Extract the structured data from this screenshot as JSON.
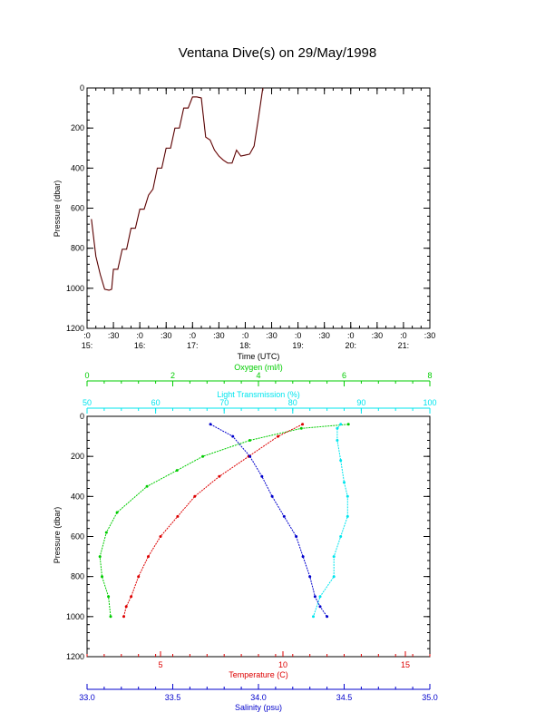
{
  "title": "Ventana Dive(s) on 29/May/1998",
  "chart_data": [
    {
      "type": "line",
      "title": "Ventana Dive(s) on 29/May/1998",
      "xlabel": "Time (UTC)",
      "ylabel": "Pressure (dbar)",
      "y_inverted": true,
      "ylim": [
        1200,
        0
      ],
      "xlim": [
        "15:00",
        "21:30"
      ],
      "yticks": [
        "0",
        "200",
        "400",
        "600",
        "800",
        "1000",
        "1200"
      ],
      "xticks_top": [
        ":0",
        ":30",
        ":0",
        ":30",
        ":0",
        ":30",
        ":0",
        ":30",
        ":0",
        ":30",
        ":0",
        ":30",
        ":0",
        ":30"
      ],
      "xticks_bottom": [
        "15:",
        "",
        "16:",
        "",
        "17:",
        "",
        "18:",
        "",
        "19:",
        "",
        "20:",
        "",
        "21:",
        ""
      ],
      "colors": {
        "trace": "#b22222",
        "highlight": "#000000"
      },
      "series": [
        {
          "x_minutes_since_15": [
            5,
            10,
            15,
            20,
            25,
            28,
            30,
            35,
            40,
            45,
            50,
            55,
            60,
            65,
            70,
            75,
            80,
            85,
            90,
            95,
            100,
            105,
            110,
            115,
            120,
            125,
            130,
            135,
            140,
            145,
            150,
            155,
            160,
            165,
            170,
            175,
            180,
            185,
            190,
            195,
            200,
            205,
            210,
            215,
            220,
            225,
            228,
            230,
            235,
            240,
            245,
            250,
            255,
            260,
            265,
            270,
            275,
            280,
            285,
            290,
            295,
            300,
            305,
            310,
            315,
            320,
            325,
            330,
            335
          ],
          "y": [
            655,
            840,
            930,
            1005,
            1010,
            1005,
            905,
            905,
            805,
            805,
            700,
            700,
            605,
            605,
            535,
            505,
            400,
            400,
            300,
            300,
            200,
            200,
            100,
            100,
            45,
            45,
            50,
            245,
            260,
            310,
            340,
            360,
            375,
            375,
            310,
            340,
            335,
            330,
            290,
            150,
            0,
            0,
            0,
            0,
            0,
            0,
            0,
            0,
            0,
            0,
            0,
            0,
            0,
            0,
            0,
            0,
            0,
            0,
            0,
            0,
            0,
            0,
            0,
            0,
            0,
            0,
            0,
            0,
            0
          ]
        }
      ]
    },
    {
      "type": "line",
      "xlabel": "Temperature (C)",
      "ylabel": "Pressure (dbar)",
      "y_inverted": true,
      "ylim": [
        1200,
        0
      ],
      "yticks": [
        "0",
        "200",
        "400",
        "600",
        "800",
        "1000",
        "1200"
      ],
      "axes": [
        {
          "name": "Oxygen (ml/l)",
          "position": "top",
          "color": "#00cc00",
          "range": [
            0,
            8
          ],
          "ticks": [
            "0",
            "2",
            "4",
            "6",
            "8"
          ]
        },
        {
          "name": "Light Transmission (%)",
          "position": "top",
          "color": "#00e5ee",
          "range": [
            50,
            100
          ],
          "ticks": [
            "50",
            "60",
            "70",
            "80",
            "90",
            "100"
          ]
        },
        {
          "name": "Temperature (C)",
          "position": "bottom",
          "color": "#dd0000",
          "range": [
            2,
            16
          ],
          "ticks": [
            "5",
            "10",
            "15"
          ]
        },
        {
          "name": "Salinity (psu)",
          "position": "bottom",
          "color": "#0000cc",
          "range": [
            33.0,
            35.0
          ],
          "ticks": [
            "33.0",
            "33.5",
            "34.0",
            "34.5",
            "35.0"
          ]
        }
      ],
      "series": [
        {
          "axis": "Oxygen (ml/l)",
          "color": "#00cc00",
          "x": [
            6.1,
            5.0,
            3.8,
            2.7,
            2.1,
            1.4,
            0.7,
            0.45,
            0.3,
            0.35,
            0.5,
            0.55
          ],
          "y": [
            40,
            60,
            120,
            200,
            270,
            350,
            480,
            580,
            700,
            800,
            900,
            1000
          ]
        },
        {
          "axis": "Light Transmission (%)",
          "color": "#00e5ee",
          "x": [
            87,
            86.5,
            86.5,
            87,
            87.5,
            88,
            88,
            87,
            86,
            86,
            84,
            83
          ],
          "y": [
            40,
            60,
            120,
            220,
            330,
            400,
            500,
            600,
            700,
            800,
            900,
            1000
          ]
        },
        {
          "axis": "Temperature (C)",
          "color": "#dd0000",
          "x": [
            10.8,
            9.8,
            8.6,
            7.4,
            6.4,
            5.7,
            5.0,
            4.5,
            4.1,
            3.8,
            3.6,
            3.5
          ],
          "y": [
            40,
            100,
            200,
            300,
            400,
            500,
            600,
            700,
            800,
            900,
            950,
            1000
          ]
        },
        {
          "axis": "Salinity (psu)",
          "color": "#0000cc",
          "x": [
            33.72,
            33.85,
            33.95,
            34.02,
            34.08,
            34.15,
            34.22,
            34.26,
            34.3,
            34.33,
            34.36,
            34.4
          ],
          "y": [
            40,
            100,
            200,
            300,
            400,
            500,
            600,
            700,
            800,
            900,
            950,
            1000
          ]
        }
      ]
    }
  ]
}
